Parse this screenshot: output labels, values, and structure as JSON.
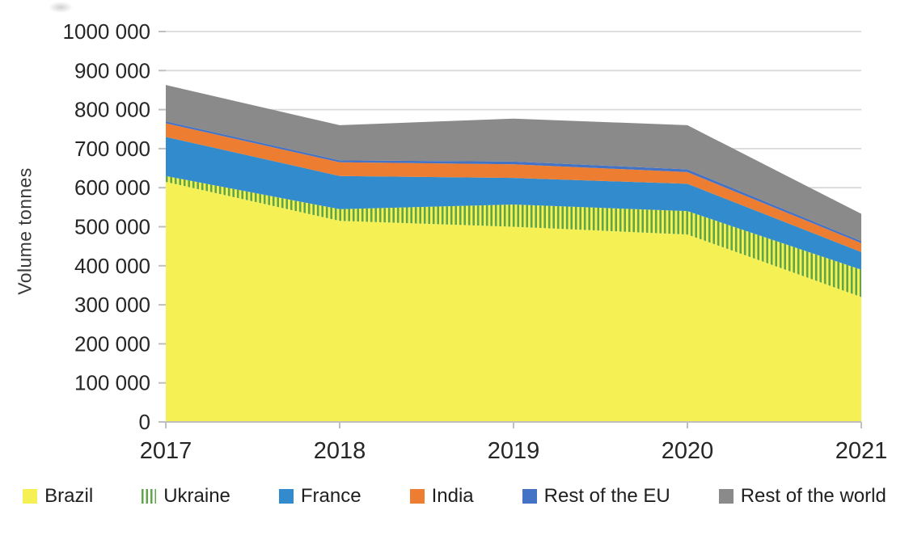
{
  "page": {
    "background": "#ffffff"
  },
  "colors": {
    "gridline": "#D9D9D9",
    "axis": "#BFBFBF",
    "tick": "#BFBFBF",
    "text": "#262626"
  },
  "chart_data": {
    "type": "area",
    "stacked": true,
    "title": "",
    "xlabel": "",
    "ylabel": "Volume tonnes",
    "x": [
      "2017",
      "2018",
      "2019",
      "2020",
      "2021"
    ],
    "ylim": [
      0,
      1000000
    ],
    "ytick_step": 100000,
    "ytick_labels": [
      "0",
      "100 000",
      "200 000",
      "300 000",
      "400 000",
      "500 000",
      "600 000",
      "700 000",
      "800 000",
      "900 000",
      "1000 000"
    ],
    "grid": true,
    "legend_position": "bottom",
    "series": [
      {
        "name": "Brazil",
        "color": "#F5F155",
        "fill": "solid",
        "values": [
          615000,
          515000,
          500000,
          480000,
          320000
        ]
      },
      {
        "name": "Ukraine",
        "color": "#5FA549",
        "fill": "vertical-stripes",
        "pattern_bg": "#F5F155",
        "values": [
          15000,
          30000,
          57000,
          60000,
          70000
        ]
      },
      {
        "name": "France",
        "color": "#318BCC",
        "fill": "solid",
        "values": [
          100000,
          85000,
          68000,
          70000,
          45000
        ]
      },
      {
        "name": "India",
        "color": "#ED7D31",
        "fill": "solid",
        "values": [
          35000,
          35000,
          35000,
          30000,
          23000
        ]
      },
      {
        "name": "Rest of the EU",
        "color": "#4472C4",
        "fill": "solid",
        "values": [
          5000,
          5000,
          7000,
          7000,
          5000
        ]
      },
      {
        "name": "Rest of the world",
        "color": "#8A8A8A",
        "fill": "solid",
        "values": [
          93000,
          90000,
          110000,
          113000,
          70000
        ]
      }
    ]
  }
}
